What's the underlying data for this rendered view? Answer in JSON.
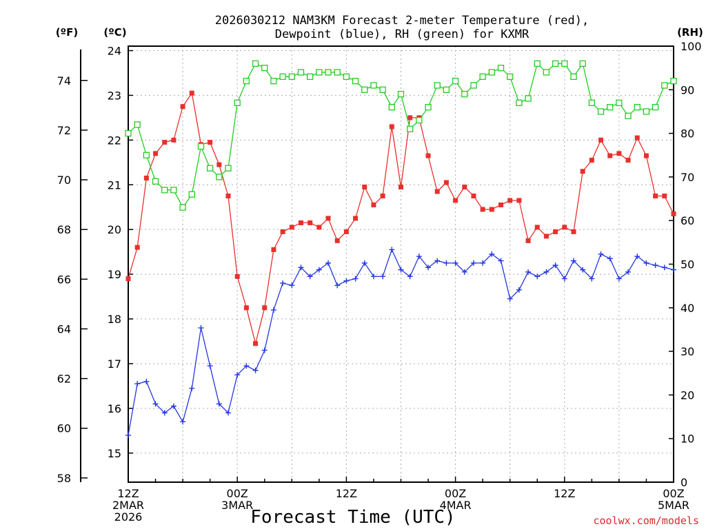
{
  "chart_data": {
    "type": "line",
    "title_line1": "2026030212 NAM3KM Forecast 2-meter Temperature (red),",
    "title_line2": "Dewpoint (blue), RH (green) for KXMR",
    "left_unit_f": "(ºF)",
    "left_unit_c": "(ºC)",
    "right_unit": "(RH)",
    "xlabel": "Forecast Time (UTC)",
    "credit": "coolwx.com/models",
    "x_range_hours": [
      0,
      60
    ],
    "y_left_c_range": [
      14.35,
      24.1
    ],
    "y_right_rh_range": [
      0,
      100
    ],
    "y_left_f_ticks": [
      "58",
      "60",
      "62",
      "64",
      "66",
      "68",
      "70",
      "72",
      "74"
    ],
    "y_left_c_ticks": [
      "15",
      "16",
      "17",
      "18",
      "19",
      "20",
      "21",
      "22",
      "23",
      "24"
    ],
    "y_right_ticks": [
      "0",
      "10",
      "20",
      "30",
      "40",
      "50",
      "60",
      "70",
      "80",
      "90",
      "100"
    ],
    "x_ticks": [
      {
        "hour": 0,
        "label1": "12Z",
        "label2": "2MAR",
        "label3": "2026"
      },
      {
        "hour": 12,
        "label1": "00Z",
        "label2": "3MAR",
        "label3": ""
      },
      {
        "hour": 24,
        "label1": "12Z",
        "label2": "",
        "label3": ""
      },
      {
        "hour": 36,
        "label1": "00Z",
        "label2": "4MAR",
        "label3": ""
      },
      {
        "hour": 48,
        "label1": "12Z",
        "label2": "",
        "label3": ""
      },
      {
        "hour": 60,
        "label1": "00Z",
        "label2": "5MAR",
        "label3": ""
      }
    ],
    "series": [
      {
        "key": "temperature",
        "unit": "°C",
        "color": "#e8302c",
        "marker": "filled-square",
        "x": [
          0,
          1,
          2,
          3,
          4,
          5,
          6,
          7,
          8,
          9,
          10,
          11,
          12,
          13,
          14,
          15,
          16,
          17,
          18,
          19,
          20,
          21,
          22,
          23,
          24,
          25,
          26,
          27,
          28,
          29,
          30,
          31,
          32,
          33,
          34,
          35,
          36,
          37,
          38,
          39,
          40,
          41,
          42,
          43,
          44,
          45,
          46,
          47,
          48,
          49,
          50,
          51,
          52,
          53,
          54,
          55,
          56,
          57,
          58,
          59,
          60
        ],
        "values": [
          18.9,
          19.6,
          21.15,
          21.7,
          21.95,
          22.0,
          22.75,
          23.05,
          21.9,
          21.95,
          21.45,
          20.75,
          18.95,
          18.25,
          17.45,
          18.25,
          19.55,
          19.95,
          20.05,
          20.15,
          20.15,
          20.05,
          20.25,
          19.75,
          19.95,
          20.25,
          20.95,
          20.55,
          20.75,
          22.3,
          20.95,
          22.5,
          22.5,
          21.65,
          20.85,
          21.05,
          20.65,
          20.95,
          20.75,
          20.45,
          20.45,
          20.55,
          20.65,
          20.65,
          19.75,
          20.05,
          19.85,
          19.95,
          20.05,
          19.95,
          21.3,
          21.55,
          22.0,
          21.65,
          21.7,
          21.55,
          22.05,
          21.65,
          20.75,
          20.75,
          20.35
        ]
      },
      {
        "key": "dewpoint",
        "unit": "°C",
        "color": "#2436e0",
        "marker": "plus",
        "x": [
          0,
          1,
          2,
          3,
          4,
          5,
          6,
          7,
          8,
          9,
          10,
          11,
          12,
          13,
          14,
          15,
          16,
          17,
          18,
          19,
          20,
          21,
          22,
          23,
          24,
          25,
          26,
          27,
          28,
          29,
          30,
          31,
          32,
          33,
          34,
          35,
          36,
          37,
          38,
          39,
          40,
          41,
          42,
          43,
          44,
          45,
          46,
          47,
          48,
          49,
          50,
          51,
          52,
          53,
          54,
          55,
          56,
          57,
          58,
          59,
          60
        ],
        "values": [
          15.4,
          16.55,
          16.6,
          16.1,
          15.9,
          16.05,
          15.7,
          16.45,
          17.8,
          16.95,
          16.1,
          15.9,
          16.75,
          16.95,
          16.85,
          17.3,
          18.2,
          18.8,
          18.75,
          19.15,
          18.95,
          19.1,
          19.25,
          18.75,
          18.85,
          18.9,
          19.25,
          18.95,
          18.95,
          19.55,
          19.1,
          18.95,
          19.4,
          19.15,
          19.3,
          19.25,
          19.25,
          19.05,
          19.25,
          19.25,
          19.45,
          19.3,
          18.45,
          18.65,
          19.05,
          18.95,
          19.05,
          19.2,
          18.9,
          19.3,
          19.1,
          18.9,
          19.45,
          19.35,
          18.9,
          19.05,
          19.4,
          19.25,
          19.2,
          19.15,
          19.1
        ]
      },
      {
        "key": "rh",
        "unit": "%",
        "color": "#22cc22",
        "marker": "open-square",
        "x": [
          0,
          1,
          2,
          3,
          4,
          5,
          6,
          7,
          8,
          9,
          10,
          11,
          12,
          13,
          14,
          15,
          16,
          17,
          18,
          19,
          20,
          21,
          22,
          23,
          24,
          25,
          26,
          27,
          28,
          29,
          30,
          31,
          32,
          33,
          34,
          35,
          36,
          37,
          38,
          39,
          40,
          41,
          42,
          43,
          44,
          45,
          46,
          47,
          48,
          49,
          50,
          51,
          52,
          53,
          54,
          55,
          56,
          57,
          58,
          59,
          60
        ],
        "values": [
          80,
          82,
          75,
          69,
          67,
          67,
          63,
          66,
          77,
          72,
          70,
          72,
          87,
          92,
          96,
          95,
          92,
          93,
          93,
          94,
          93,
          94,
          94,
          94,
          93,
          92,
          90,
          91,
          90,
          86,
          89,
          81,
          83,
          86,
          91,
          90,
          92,
          89,
          91,
          93,
          94,
          95,
          93,
          87,
          88,
          96,
          94,
          96,
          96,
          93,
          96,
          87,
          85,
          86,
          87,
          84,
          86,
          85,
          86,
          91,
          92
        ]
      }
    ]
  }
}
